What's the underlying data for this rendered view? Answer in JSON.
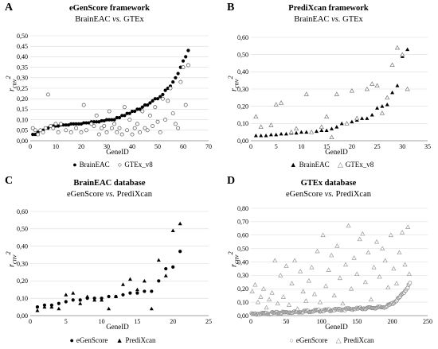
{
  "panels": [
    {
      "letter": "A",
      "title": "eGenScore framework",
      "subtitle": "BrainEAC vs. GTEx",
      "ylabel": "r_cnv^2",
      "xlabel": "GeneID",
      "legend": [
        "BrainEAC",
        "GTEx_v8"
      ]
    },
    {
      "letter": "B",
      "title": "PrediXcan framework",
      "subtitle": "BrainEAC vs. GTEx",
      "ylabel": "r_cnv^2",
      "xlabel": "GeneID",
      "legend": [
        "BrainEAC",
        "GTEx_v8"
      ]
    },
    {
      "letter": "C",
      "title": "BrainEAC database",
      "subtitle": "eGenScore vs. PrediXcan",
      "ylabel": "r_cnv^2",
      "xlabel": "GeneID",
      "legend": [
        "eGenScore",
        "PrediXcan"
      ]
    },
    {
      "letter": "D",
      "title": "GTEx database",
      "subtitle": "eGenScore vs. PrediXcan",
      "ylabel": "r_cnv^2",
      "xlabel": "GeneID",
      "legend": [
        "eGenScore",
        "PrediXcan"
      ]
    }
  ],
  "chart_data": [
    {
      "type": "scatter",
      "title": "eGenScore framework",
      "subtitle": "BrainEAC vs. GTEx",
      "xlabel": "GeneID",
      "ylabel": "r_cnv^2",
      "xlim": [
        0,
        70
      ],
      "ylim": [
        0,
        0.5
      ],
      "xticks": [
        0,
        10,
        20,
        30,
        40,
        50,
        60,
        70
      ],
      "yticks": [
        "0,00",
        "0,05",
        "0,10",
        "0,15",
        "0,20",
        "0,25",
        "0,30",
        "0,35",
        "0,40",
        "0,45",
        "0,50"
      ],
      "legend_position": "bottom",
      "series": [
        {
          "name": "BrainEAC",
          "marker": "filled-circle",
          "color": "#000000",
          "x": [
            1,
            2,
            3,
            4,
            5,
            6,
            7,
            8,
            9,
            10,
            11,
            12,
            13,
            14,
            15,
            16,
            17,
            18,
            19,
            20,
            21,
            22,
            23,
            24,
            25,
            26,
            27,
            28,
            29,
            30,
            31,
            32,
            33,
            34,
            35,
            36,
            37,
            38,
            39,
            40,
            41,
            42,
            43,
            44,
            45,
            46,
            47,
            48,
            49,
            50,
            51,
            52,
            53,
            54,
            55,
            56,
            57,
            58,
            59,
            60,
            61,
            62
          ],
          "y": [
            0.03,
            0.03,
            0.04,
            0.05,
            0.05,
            0.06,
            0.06,
            0.07,
            0.07,
            0.07,
            0.07,
            0.075,
            0.075,
            0.075,
            0.075,
            0.08,
            0.08,
            0.08,
            0.08,
            0.08,
            0.085,
            0.085,
            0.085,
            0.09,
            0.09,
            0.09,
            0.09,
            0.095,
            0.095,
            0.1,
            0.1,
            0.1,
            0.1,
            0.11,
            0.11,
            0.12,
            0.12,
            0.13,
            0.13,
            0.14,
            0.14,
            0.15,
            0.15,
            0.16,
            0.17,
            0.17,
            0.18,
            0.19,
            0.2,
            0.2,
            0.21,
            0.22,
            0.24,
            0.25,
            0.26,
            0.28,
            0.3,
            0.32,
            0.35,
            0.38,
            0.4,
            0.43
          ]
        },
        {
          "name": "GTEx_v8",
          "marker": "open-circle",
          "color": "#555555",
          "x": [
            1,
            2,
            3,
            4,
            5,
            6,
            7,
            8,
            9,
            10,
            11,
            12,
            14,
            16,
            18,
            20,
            21,
            22,
            24,
            25,
            26,
            27,
            28,
            29,
            30,
            31,
            32,
            33,
            34,
            35,
            36,
            37,
            38,
            39,
            40,
            41,
            42,
            43,
            44,
            45,
            46,
            47,
            48,
            49,
            50,
            51,
            52,
            53,
            54,
            55,
            56,
            57,
            58,
            59,
            60,
            61,
            62
          ],
          "y": [
            0.06,
            0.05,
            0.03,
            0.05,
            0.04,
            0.06,
            0.22,
            0.07,
            0.06,
            0.08,
            0.04,
            0.08,
            0.05,
            0.04,
            0.06,
            0.04,
            0.17,
            0.05,
            0.08,
            0.07,
            0.12,
            0.03,
            0.06,
            0.07,
            0.04,
            0.14,
            0.06,
            0.08,
            0.04,
            0.06,
            0.03,
            0.16,
            0.05,
            0.1,
            0.03,
            0.06,
            0.08,
            0.04,
            0.14,
            0.06,
            0.05,
            0.12,
            0.07,
            0.16,
            0.09,
            0.04,
            0.2,
            0.1,
            0.19,
            0.25,
            0.13,
            0.08,
            0.06,
            0.28,
            0.35,
            0.17,
            0.36
          ]
        }
      ]
    },
    {
      "type": "scatter",
      "title": "PrediXcan framework",
      "subtitle": "BrainEAC vs. GTEx",
      "xlabel": "GeneID",
      "ylabel": "r_cnv^2",
      "xlim": [
        0,
        35
      ],
      "ylim": [
        0,
        0.6
      ],
      "xticks": [
        0,
        5,
        10,
        15,
        20,
        25,
        30,
        35
      ],
      "yticks": [
        "0,00",
        "0,10",
        "0,20",
        "0,30",
        "0,40",
        "0,50",
        "0,60"
      ],
      "legend_position": "bottom",
      "series": [
        {
          "name": "BrainEAC",
          "marker": "filled-triangle",
          "color": "#000000",
          "x": [
            1,
            2,
            3,
            4,
            5,
            6,
            7,
            8,
            9,
            10,
            11,
            12,
            13,
            14,
            15,
            16,
            17,
            18,
            19,
            20,
            21,
            22,
            23,
            24,
            25,
            26,
            27,
            28,
            29,
            30,
            31
          ],
          "y": [
            0.03,
            0.03,
            0.03,
            0.035,
            0.035,
            0.04,
            0.04,
            0.045,
            0.045,
            0.05,
            0.05,
            0.05,
            0.055,
            0.06,
            0.06,
            0.07,
            0.08,
            0.1,
            0.1,
            0.11,
            0.12,
            0.13,
            0.13,
            0.15,
            0.19,
            0.2,
            0.21,
            0.28,
            0.32,
            0.49,
            0.53
          ]
        },
        {
          "name": "GTEx_v8",
          "marker": "open-triangle",
          "color": "#777777",
          "x": [
            1,
            2,
            4,
            5,
            6,
            8,
            9,
            11,
            12,
            14,
            15,
            16,
            17,
            19,
            20,
            21,
            23,
            24,
            25,
            26,
            27,
            28,
            29,
            30,
            31
          ],
          "y": [
            0.14,
            0.08,
            0.09,
            0.21,
            0.22,
            0.05,
            0.07,
            0.27,
            0.05,
            0.08,
            0.14,
            0.02,
            0.27,
            0.1,
            0.29,
            0.13,
            0.3,
            0.33,
            0.32,
            0.16,
            0.25,
            0.44,
            0.54,
            0.5,
            0.3
          ]
        }
      ]
    },
    {
      "type": "scatter",
      "title": "BrainEAC database",
      "subtitle": "eGenScore vs. PrediXcan",
      "xlabel": "GeneID",
      "ylabel": "r_cnv^2",
      "xlim": [
        0,
        25
      ],
      "ylim": [
        0,
        0.6
      ],
      "xticks": [
        0,
        5,
        10,
        15,
        20,
        25
      ],
      "yticks": [
        "0,00",
        "0,10",
        "0,20",
        "0,30",
        "0,40",
        "0,50",
        "0,60"
      ],
      "legend_position": "bottom",
      "series": [
        {
          "name": "eGenScore",
          "marker": "filled-circle",
          "color": "#000000",
          "x": [
            1,
            2,
            3,
            4,
            5,
            6,
            7,
            8,
            9,
            10,
            11,
            12,
            13,
            14,
            15,
            16,
            17,
            18,
            19,
            20,
            21
          ],
          "y": [
            0.05,
            0.06,
            0.06,
            0.07,
            0.08,
            0.09,
            0.09,
            0.1,
            0.1,
            0.1,
            0.11,
            0.11,
            0.12,
            0.13,
            0.13,
            0.14,
            0.14,
            0.2,
            0.27,
            0.28,
            0.37
          ]
        },
        {
          "name": "PrediXcan",
          "marker": "filled-triangle",
          "color": "#000000",
          "x": [
            1,
            2,
            3,
            4,
            5,
            6,
            7,
            8,
            9,
            10,
            11,
            12,
            13,
            14,
            15,
            16,
            17,
            18,
            19,
            20,
            21
          ],
          "y": [
            0.03,
            0.05,
            0.05,
            0.04,
            0.12,
            0.13,
            0.07,
            0.11,
            0.09,
            0.09,
            0.04,
            0.11,
            0.18,
            0.21,
            0.15,
            0.2,
            0.04,
            0.32,
            0.23,
            0.49,
            0.53
          ]
        }
      ]
    },
    {
      "type": "scatter",
      "title": "GTEx database",
      "subtitle": "eGenScore vs. PrediXcan",
      "xlabel": "GeneID",
      "ylabel": "r_cnv^2",
      "xlim": [
        0,
        250
      ],
      "ylim": [
        0,
        0.8
      ],
      "xticks": [
        0,
        50,
        100,
        150,
        200,
        250
      ],
      "yticks": [
        "0,00",
        "0,10",
        "0,20",
        "0,30",
        "0,40",
        "0,50",
        "0,60",
        "0,70",
        "0,80"
      ],
      "legend_position": "bottom",
      "series": [
        {
          "name": "eGenScore",
          "marker": "open-circle",
          "color": "#888888",
          "n_points": 225,
          "pattern": "ascending: 0.01 at GeneID 1 rising to about 0.10 by GeneID 180, then up to 0.24 at GeneID 225",
          "y_start": 0.01,
          "y_mid": 0.06,
          "y_end": 0.24
        },
        {
          "name": "PrediXcan",
          "marker": "open-triangle",
          "color": "#999999",
          "x": [
            2,
            6,
            10,
            14,
            18,
            22,
            26,
            30,
            34,
            38,
            42,
            46,
            50,
            54,
            58,
            62,
            66,
            70,
            74,
            78,
            82,
            86,
            90,
            94,
            98,
            102,
            106,
            110,
            114,
            118,
            122,
            126,
            130,
            134,
            138,
            142,
            146,
            150,
            154,
            158,
            162,
            166,
            170,
            174,
            178,
            182,
            186,
            190,
            194,
            198,
            202,
            206,
            210,
            214,
            218,
            222,
            224
          ],
          "y": [
            0.18,
            0.23,
            0.1,
            0.14,
            0.2,
            0.06,
            0.12,
            0.17,
            0.41,
            0.09,
            0.3,
            0.14,
            0.37,
            0.08,
            0.24,
            0.41,
            0.05,
            0.33,
            0.18,
            0.11,
            0.26,
            0.36,
            0.16,
            0.48,
            0.1,
            0.6,
            0.22,
            0.34,
            0.45,
            0.15,
            0.52,
            0.28,
            0.09,
            0.38,
            0.67,
            0.2,
            0.43,
            0.31,
            0.57,
            0.61,
            0.25,
            0.47,
            0.12,
            0.36,
            0.55,
            0.29,
            0.5,
            0.41,
            0.21,
            0.6,
            0.35,
            0.24,
            0.47,
            0.62,
            0.38,
            0.66,
            0.31
          ]
        }
      ]
    }
  ]
}
